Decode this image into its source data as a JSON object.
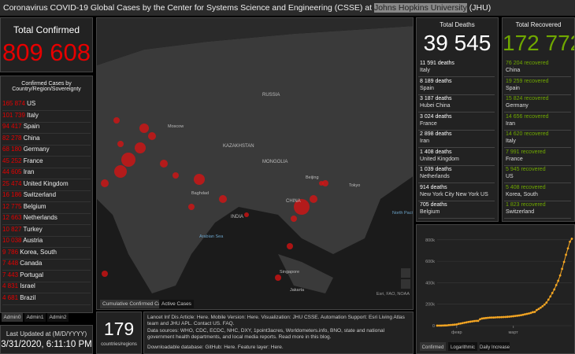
{
  "header": {
    "title": "Coronavirus COVID-19 Global Cases by the Center for Systems Science and Engineering (CSSE) at",
    "university": "Johns Hopkins University",
    "suffix": "(JHU)"
  },
  "total_confirmed": {
    "label": "Total Confirmed",
    "value": "809 608"
  },
  "countries": {
    "title": "Confirmed Cases by Country/Region/Sovereignty",
    "rows": [
      [
        "165 874",
        "US"
      ],
      [
        "101 739",
        "Italy"
      ],
      [
        "94 417",
        "Spain"
      ],
      [
        "82 278",
        "China"
      ],
      [
        "68 180",
        "Germany"
      ],
      [
        "45 252",
        "France"
      ],
      [
        "44 605",
        "Iran"
      ],
      [
        "25 474",
        "United Kingdom"
      ],
      [
        "16 186",
        "Switzerland"
      ],
      [
        "12 775",
        "Belgium"
      ],
      [
        "12 663",
        "Netherlands"
      ],
      [
        "10 827",
        "Turkey"
      ],
      [
        "10 038",
        "Austria"
      ],
      [
        "9 786",
        "Korea, South"
      ],
      [
        "7 448",
        "Canada"
      ],
      [
        "7 443",
        "Portugal"
      ],
      [
        "4 831",
        "Israel"
      ],
      [
        "4 681",
        "Brazil"
      ]
    ]
  },
  "admin_tabs": [
    "Admin0",
    "Admin1",
    "Admin2"
  ],
  "last_updated": {
    "label": "Last Updated at (M/D/YYYY)",
    "value": "3/31/2020, 6:11:10 PM"
  },
  "map": {
    "labels": [
      "RUSSIA",
      "KAZAKHSTAN",
      "MONGOLIA",
      "CHINA",
      "INDIA",
      "Moscow",
      "Beijing",
      "Tokyo",
      "Baghdad",
      "Singapore",
      "Jakarta",
      "Arabian Sea",
      "North Pacific Ocean"
    ],
    "tabs": [
      "Cumulative Confirmed Cases",
      "Active Cases"
    ],
    "attribution": "Esri, FAO, NOAA"
  },
  "regions_count": {
    "value": "179",
    "label": "countries/regions"
  },
  "info": {
    "lines": [
      "Lancet Inf Dis Article: Here. Mobile Version: Here. Visualization: JHU CSSE. Automation Support: Esri Living Atlas team and JHU APL. Contact US. FAQ.",
      "Data sources: WHO, CDC, ECDC, NHC, DXY, 1point3acres, Worldometers.info, BNO, state and national government health departments, and local media reports. Read more in this blog.",
      "Downloadable database: GitHub: Here. Feature layer: Here."
    ]
  },
  "deaths": {
    "title": "Total Deaths",
    "value": "39 545",
    "rows": [
      [
        "11 591 deaths",
        "Italy"
      ],
      [
        "8 189 deaths",
        "Spain"
      ],
      [
        "3 187 deaths",
        "Hubei China"
      ],
      [
        "3 024 deaths",
        "France"
      ],
      [
        "2 898 deaths",
        "Iran"
      ],
      [
        "1 408 deaths",
        "United Kingdom"
      ],
      [
        "1 039 deaths",
        "Netherlands"
      ],
      [
        "914 deaths",
        "New York City New York US"
      ],
      [
        "705 deaths",
        "Belgium"
      ]
    ]
  },
  "recovered": {
    "title": "Total Recovered",
    "value": "172 772",
    "rows": [
      [
        "76 204 recovered",
        "China"
      ],
      [
        "19 259 recovered",
        "Spain"
      ],
      [
        "15 824 recovered",
        "Germany"
      ],
      [
        "14 656 recovered",
        "Iran"
      ],
      [
        "14 620 recovered",
        "Italy"
      ],
      [
        "7 991 recovered",
        "France"
      ],
      [
        "5 945 recovered",
        "US"
      ],
      [
        "5 408 recovered",
        "Korea, South"
      ],
      [
        "1 823 recovered",
        "Switzerland"
      ]
    ]
  },
  "chart": {
    "type": "line",
    "color": "#f5a623",
    "tabs": [
      "Confirmed",
      "Logarithmic",
      "Daily Increase"
    ],
    "values": [
      555,
      654,
      941,
      1434,
      2118,
      2927,
      5578,
      6166,
      8234,
      9927,
      12038,
      16787,
      19881,
      23892,
      27635,
      30794,
      34391,
      37120,
      40150,
      42762,
      44802,
      45221,
      60368,
      66885,
      69030,
      71224,
      73258,
      75136,
      75639,
      76197,
      76823,
      78579,
      78965,
      79568,
      80413,
      81395,
      82754,
      84120,
      86011,
      88369,
      90306,
      92840,
      95120,
      97886,
      101801,
      105847,
      109821,
      113590,
      118620,
      125875,
      128352,
      145205,
      156101,
      167454,
      181574,
      197102,
      214821,
      242570,
      272208,
      304507,
      336953,
      378235,
      418045,
      467653,
      529591,
      593291,
      660706,
      720117,
      782365,
      809608
    ],
    "xlim": [
      0,
      69
    ],
    "xticks": [
      {
        "value": 10,
        "label": "февр"
      },
      {
        "value": 39,
        "label": "март"
      }
    ],
    "ylim": [
      0,
      850000
    ],
    "yticks": [
      0,
      {
        "value": 200000,
        "label": "200k"
      },
      {
        "value": 400000,
        "label": "400k"
      },
      {
        "value": 600000,
        "label": "600k"
      },
      {
        "value": 800000,
        "label": "800k"
      }
    ]
  }
}
